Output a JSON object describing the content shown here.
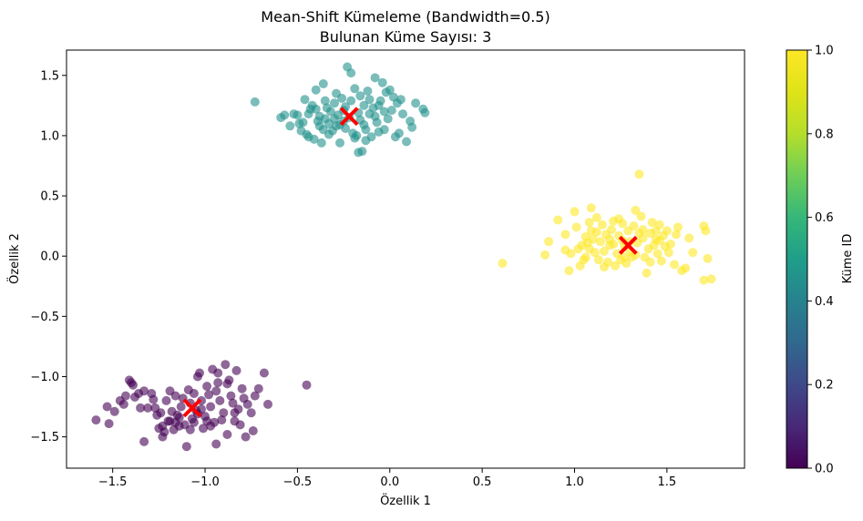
{
  "chart_data": {
    "type": "scatter",
    "title": "Mean-Shift Kümeleme (Bandwidth=0.5)",
    "subtitle": "Bulunan Küme Sayısı: 3",
    "xlabel": "Özellik 1",
    "ylabel": "Özellik 2",
    "xlim": [
      -1.75,
      1.92
    ],
    "ylim": [
      -1.76,
      1.71
    ],
    "xticks": [
      -1.5,
      -1.0,
      -0.5,
      0.0,
      0.5,
      1.0,
      1.5
    ],
    "xtick_labels": [
      "−1.5",
      "−1.0",
      "−0.5",
      "0.0",
      "0.5",
      "1.0",
      "1.5"
    ],
    "yticks": [
      -1.5,
      -1.0,
      -0.5,
      0.0,
      0.5,
      1.0,
      1.5
    ],
    "ytick_labels": [
      "−1.5",
      "−1.0",
      "−0.5",
      "0.0",
      "0.5",
      "1.0",
      "1.5"
    ],
    "grid": false,
    "colorbar": {
      "label": "Küme ID",
      "colormap": "viridis",
      "range": [
        0.0,
        1.0
      ],
      "ticks": [
        0.0,
        0.2,
        0.4,
        0.6,
        0.8,
        1.0
      ],
      "tick_labels": [
        "0.0",
        "0.2",
        "0.4",
        "0.6",
        "0.8",
        "1.0"
      ]
    },
    "series": [
      {
        "cluster": 0,
        "color": "#440154",
        "points": [
          [
            -1.59,
            -1.36
          ],
          [
            -1.53,
            -1.25
          ],
          [
            -1.52,
            -1.39
          ],
          [
            -1.49,
            -1.29
          ],
          [
            -1.46,
            -1.2
          ],
          [
            -1.44,
            -1.23
          ],
          [
            -1.43,
            -1.16
          ],
          [
            -1.41,
            -1.03
          ],
          [
            -1.4,
            -1.05
          ],
          [
            -1.39,
            -1.07
          ],
          [
            -1.38,
            -1.17
          ],
          [
            -1.36,
            -1.14
          ],
          [
            -1.33,
            -1.54
          ],
          [
            -1.31,
            -1.26
          ],
          [
            -1.29,
            -1.14
          ],
          [
            -1.27,
            -1.26
          ],
          [
            -1.25,
            -1.43
          ],
          [
            -1.24,
            -1.3
          ],
          [
            -1.23,
            -1.5
          ],
          [
            -1.22,
            -1.46
          ],
          [
            -1.21,
            -1.2
          ],
          [
            -1.2,
            -1.37
          ],
          [
            -1.19,
            -1.12
          ],
          [
            -1.18,
            -1.29
          ],
          [
            -1.17,
            -1.44
          ],
          [
            -1.16,
            -1.38
          ],
          [
            -1.15,
            -1.32
          ],
          [
            -1.14,
            -1.41
          ],
          [
            -1.12,
            -1.18
          ],
          [
            -1.1,
            -1.58
          ],
          [
            -1.09,
            -1.11
          ],
          [
            -1.08,
            -1.22
          ],
          [
            -1.07,
            -1.35
          ],
          [
            -1.06,
            -1.38
          ],
          [
            -1.05,
            -1.28
          ],
          [
            -1.04,
            -1.0
          ],
          [
            -1.03,
            -0.97
          ],
          [
            -1.02,
            -1.2
          ],
          [
            -1.01,
            -1.43
          ],
          [
            -1.0,
            -1.33
          ],
          [
            -0.99,
            -1.37
          ],
          [
            -0.98,
            -1.15
          ],
          [
            -0.97,
            -1.25
          ],
          [
            -0.96,
            -0.94
          ],
          [
            -0.95,
            -1.38
          ],
          [
            -0.94,
            -1.12
          ],
          [
            -0.93,
            -0.97
          ],
          [
            -0.92,
            -1.2
          ],
          [
            -0.91,
            -1.36
          ],
          [
            -0.9,
            -1.3
          ],
          [
            -0.89,
            -0.9
          ],
          [
            -0.88,
            -1.48
          ],
          [
            -0.87,
            -1.03
          ],
          [
            -0.86,
            -1.16
          ],
          [
            -0.85,
            -1.22
          ],
          [
            -0.84,
            -1.37
          ],
          [
            -0.83,
            -0.95
          ],
          [
            -0.82,
            -1.27
          ],
          [
            -0.81,
            -1.4
          ],
          [
            -0.8,
            -1.1
          ],
          [
            -0.78,
            -1.5
          ],
          [
            -0.77,
            -1.23
          ],
          [
            -0.75,
            -1.3
          ],
          [
            -0.74,
            -1.45
          ],
          [
            -0.73,
            -1.16
          ],
          [
            -0.71,
            -1.1
          ],
          [
            -0.68,
            -0.97
          ],
          [
            -0.66,
            -1.23
          ],
          [
            -0.45,
            -1.07
          ],
          [
            -1.26,
            -1.32
          ],
          [
            -1.13,
            -1.25
          ],
          [
            -1.11,
            -1.4
          ],
          [
            -1.06,
            -1.14
          ],
          [
            -0.97,
            -1.41
          ],
          [
            -0.94,
            -1.56
          ],
          [
            -0.88,
            -1.06
          ],
          [
            -1.19,
            -1.37
          ],
          [
            -1.16,
            -1.16
          ],
          [
            -1.33,
            -1.12
          ],
          [
            -1.02,
            -1.27
          ],
          [
            -0.93,
            -1.05
          ],
          [
            -1.08,
            -1.44
          ],
          [
            -0.99,
            -1.08
          ],
          [
            -1.14,
            -1.34
          ],
          [
            -0.84,
            -1.3
          ],
          [
            -1.35,
            -1.26
          ],
          [
            -1.28,
            -1.19
          ],
          [
            -0.79,
            -1.18
          ],
          [
            -1.23,
            -1.41
          ],
          [
            -1.04,
            -1.31
          ]
        ]
      },
      {
        "cluster": 1,
        "color": "#21918c",
        "points": [
          [
            -0.73,
            1.28
          ],
          [
            -0.59,
            1.15
          ],
          [
            -0.54,
            1.08
          ],
          [
            -0.52,
            1.18
          ],
          [
            -0.5,
            1.17
          ],
          [
            -0.48,
            1.04
          ],
          [
            -0.47,
            1.11
          ],
          [
            -0.45,
            1.01
          ],
          [
            -0.44,
            1.18
          ],
          [
            -0.42,
            1.25
          ],
          [
            -0.41,
            0.97
          ],
          [
            -0.4,
            1.22
          ],
          [
            -0.39,
            1.12
          ],
          [
            -0.38,
            1.08
          ],
          [
            -0.37,
            0.94
          ],
          [
            -0.36,
            1.05
          ],
          [
            -0.35,
            1.14
          ],
          [
            -0.34,
            1.23
          ],
          [
            -0.33,
            1.1
          ],
          [
            -0.32,
            1.2
          ],
          [
            -0.31,
            1.04
          ],
          [
            -0.3,
            1.27
          ],
          [
            -0.29,
            1.35
          ],
          [
            -0.28,
            1.17
          ],
          [
            -0.27,
            1.09
          ],
          [
            -0.26,
            1.31
          ],
          [
            -0.25,
            1.21
          ],
          [
            -0.24,
            1.06
          ],
          [
            -0.23,
            1.57
          ],
          [
            -0.22,
            1.15
          ],
          [
            -0.21,
            1.29
          ],
          [
            -0.2,
            1.02
          ],
          [
            -0.19,
            1.39
          ],
          [
            -0.18,
            1.0
          ],
          [
            -0.17,
            0.86
          ],
          [
            -0.16,
            1.13
          ],
          [
            -0.15,
            0.87
          ],
          [
            -0.14,
            1.25
          ],
          [
            -0.13,
            1.05
          ],
          [
            -0.12,
            1.37
          ],
          [
            -0.11,
            1.18
          ],
          [
            -0.1,
            0.99
          ],
          [
            -0.09,
            1.23
          ],
          [
            -0.08,
            1.48
          ],
          [
            -0.07,
            1.11
          ],
          [
            -0.06,
            1.03
          ],
          [
            -0.05,
            1.29
          ],
          [
            -0.04,
            1.44
          ],
          [
            -0.03,
            1.2
          ],
          [
            -0.02,
            1.36
          ],
          [
            -0.01,
            1.14
          ],
          [
            0.01,
            1.21
          ],
          [
            0.02,
            1.32
          ],
          [
            0.04,
            1.27
          ],
          [
            0.05,
            1.02
          ],
          [
            0.07,
            1.18
          ],
          [
            0.09,
            0.95
          ],
          [
            0.11,
            1.12
          ],
          [
            0.12,
            1.07
          ],
          [
            0.14,
            1.27
          ],
          [
            0.18,
            1.22
          ],
          [
            0.19,
            1.19
          ],
          [
            -0.57,
            1.17
          ],
          [
            -0.46,
            1.3
          ],
          [
            -0.43,
            1.22
          ],
          [
            -0.4,
            1.38
          ],
          [
            -0.36,
            1.43
          ],
          [
            -0.3,
            1.14
          ],
          [
            -0.27,
            0.94
          ],
          [
            -0.25,
            1.12
          ],
          [
            -0.21,
            1.52
          ],
          [
            -0.19,
            0.98
          ],
          [
            -0.16,
            1.33
          ],
          [
            -0.14,
            1.09
          ],
          [
            -0.11,
            1.3
          ],
          [
            -0.06,
            1.25
          ],
          [
            -0.03,
            1.05
          ],
          [
            0.0,
            1.38
          ],
          [
            0.03,
            0.99
          ],
          [
            -0.33,
            1.01
          ],
          [
            -0.38,
            1.16
          ],
          [
            -0.24,
            1.24
          ],
          [
            -0.17,
            1.19
          ],
          [
            -0.08,
            1.16
          ],
          [
            -0.13,
            0.96
          ],
          [
            -0.29,
            1.08
          ],
          [
            -0.35,
            1.29
          ],
          [
            0.06,
            1.3
          ],
          [
            -0.49,
            1.1
          ],
          [
            -0.44,
            0.99
          ]
        ]
      },
      {
        "cluster": 2,
        "color": "#fde725",
        "points": [
          [
            0.61,
            -0.06
          ],
          [
            0.84,
            0.01
          ],
          [
            0.86,
            0.12
          ],
          [
            0.91,
            0.3
          ],
          [
            0.95,
            0.05
          ],
          [
            0.97,
            -0.12
          ],
          [
            0.98,
            0.02
          ],
          [
            1.0,
            0.37
          ],
          [
            1.01,
            0.24
          ],
          [
            1.02,
            0.06
          ],
          [
            1.04,
            0.09
          ],
          [
            1.05,
            -0.03
          ],
          [
            1.06,
            0.16
          ],
          [
            1.07,
            0.11
          ],
          [
            1.08,
            0.28
          ],
          [
            1.09,
            0.4
          ],
          [
            1.1,
            0.14
          ],
          [
            1.11,
            0.03
          ],
          [
            1.12,
            0.2
          ],
          [
            1.13,
            -0.03
          ],
          [
            1.14,
            0.12
          ],
          [
            1.15,
            0.26
          ],
          [
            1.16,
            0.04
          ],
          [
            1.17,
            0.18
          ],
          [
            1.18,
            -0.05
          ],
          [
            1.19,
            0.09
          ],
          [
            1.2,
            0.22
          ],
          [
            1.21,
            0.29
          ],
          [
            1.22,
            -0.08
          ],
          [
            1.23,
            0.02
          ],
          [
            1.24,
            0.17
          ],
          [
            1.25,
            -0.03
          ],
          [
            1.26,
            0.13
          ],
          [
            1.27,
            0.08
          ],
          [
            1.28,
            -0.06
          ],
          [
            1.29,
            0.21
          ],
          [
            1.3,
            0.04
          ],
          [
            1.31,
            -0.01
          ],
          [
            1.32,
            0.25
          ],
          [
            1.33,
            0.38
          ],
          [
            1.34,
            0.11
          ],
          [
            1.35,
            0.68
          ],
          [
            1.36,
            0.33
          ],
          [
            1.37,
            0.15
          ],
          [
            1.38,
            -0.01
          ],
          [
            1.39,
            -0.14
          ],
          [
            1.4,
            0.06
          ],
          [
            1.41,
            0.19
          ],
          [
            1.42,
            0.28
          ],
          [
            1.43,
            0.09
          ],
          [
            1.44,
            0.21
          ],
          [
            1.45,
            0.02
          ],
          [
            1.46,
            0.13
          ],
          [
            1.47,
            -0.04
          ],
          [
            1.48,
            0.17
          ],
          [
            1.49,
            0.08
          ],
          [
            1.5,
            0.21
          ],
          [
            1.52,
            0.1
          ],
          [
            1.54,
            -0.07
          ],
          [
            1.56,
            0.24
          ],
          [
            1.58,
            -0.12
          ],
          [
            1.6,
            -0.1
          ],
          [
            1.62,
            0.15
          ],
          [
            1.64,
            0.03
          ],
          [
            1.7,
            0.25
          ],
          [
            1.7,
            -0.2
          ],
          [
            1.71,
            0.21
          ],
          [
            1.72,
            -0.02
          ],
          [
            1.74,
            -0.19
          ],
          [
            0.95,
            0.18
          ],
          [
            1.03,
            -0.08
          ],
          [
            1.08,
            0.06
          ],
          [
            1.12,
            0.32
          ],
          [
            1.19,
            0.14
          ],
          [
            1.26,
            0.27
          ],
          [
            1.33,
            0.01
          ],
          [
            1.37,
            0.22
          ],
          [
            1.44,
            0.14
          ],
          [
            1.51,
            0.03
          ],
          [
            1.16,
            -0.09
          ],
          [
            1.24,
            0.31
          ],
          [
            1.3,
            0.12
          ],
          [
            1.41,
            -0.05
          ],
          [
            1.46,
            0.26
          ],
          [
            1.55,
            0.18
          ],
          [
            1.09,
            0.21
          ],
          [
            1.21,
            0.1
          ],
          [
            1.35,
            0.19
          ],
          [
            1.27,
            -0.01
          ],
          [
            1.06,
            -0.01
          ]
        ]
      }
    ],
    "centers": [
      {
        "cluster": 0,
        "x": -1.07,
        "y": -1.26
      },
      {
        "cluster": 1,
        "x": -0.22,
        "y": 1.16
      },
      {
        "cluster": 2,
        "x": 1.29,
        "y": 0.09
      }
    ],
    "center_color": "#ff0000",
    "point_alpha": 0.6
  }
}
